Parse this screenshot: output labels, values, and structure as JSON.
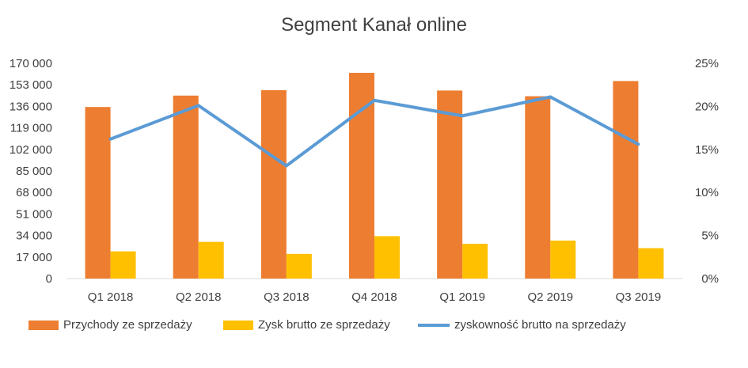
{
  "chart_data": {
    "type": "bar",
    "title": "Segment Kanał online",
    "categories": [
      "Q1 2018",
      "Q2 2018",
      "Q3 2018",
      "Q4 2018",
      "Q1 2019",
      "Q2 2019",
      "Q3 2019"
    ],
    "series": [
      {
        "name": "Przychody ze sprzedaży",
        "type": "bar",
        "axis": "left",
        "color": "#ED7D31",
        "values": [
          135500,
          144500,
          148800,
          162500,
          148500,
          144000,
          156000
        ]
      },
      {
        "name": "Zysk brutto ze sprzedaży",
        "type": "bar",
        "axis": "left",
        "color": "#FFC000",
        "values": [
          21500,
          29000,
          19500,
          33500,
          27500,
          30000,
          24000
        ]
      },
      {
        "name": "zyskowność brutto na sprzedaży",
        "type": "line",
        "axis": "right",
        "color": "#5B9BD5",
        "values": [
          0.162,
          0.201,
          0.131,
          0.207,
          0.189,
          0.211,
          0.156
        ]
      }
    ],
    "y_left": {
      "min": 0,
      "max": 170000,
      "ticks": [
        0,
        17000,
        34000,
        51000,
        68000,
        85000,
        102000,
        119000,
        136000,
        153000,
        170000
      ],
      "tick_labels": [
        "0",
        "17 000",
        "34 000",
        "51 000",
        "68 000",
        "85 000",
        "102 000",
        "119 000",
        "136 000",
        "153 000",
        "170 000"
      ]
    },
    "y_right": {
      "min": 0,
      "max": 0.25,
      "ticks": [
        0,
        0.05,
        0.1,
        0.15,
        0.2,
        0.25
      ],
      "tick_labels": [
        "0%",
        "5%",
        "10%",
        "15%",
        "20%",
        "25%"
      ]
    },
    "grid": false,
    "legend_position": "bottom"
  }
}
